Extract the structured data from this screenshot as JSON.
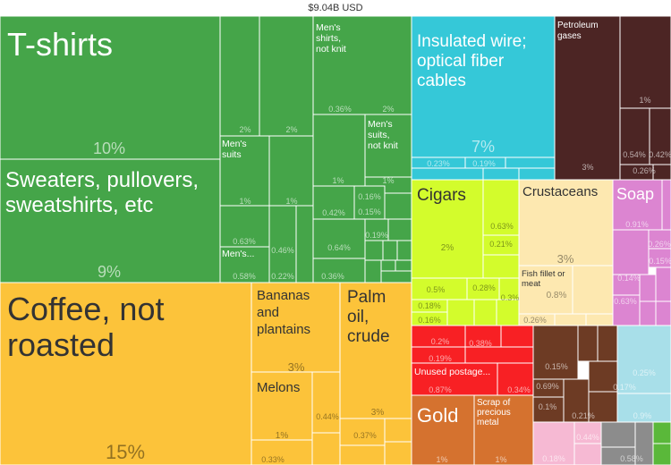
{
  "title": "$9.04B USD",
  "chart_data": {
    "type": "treemap",
    "total": "$9.04B USD",
    "colors": {
      "green": "#45a549",
      "orange": "#fcc33a",
      "cyan": "#35c8d8",
      "darkred": "#4c2524",
      "lime": "#d3fc2c",
      "cream": "#fde8b0",
      "pink": "#dc85d1",
      "red": "#f82024",
      "brown": "#d5722f",
      "chocolate": "#6d3b24",
      "lightblue": "#a8dfe9",
      "lightpink": "#f6b9d3",
      "gray": "#8c8c8c",
      "brightgreen": "#5ab83a"
    },
    "labels": [
      {
        "name": "T-shirts",
        "pct": "10%"
      },
      {
        "name": "Sweaters, pullovers, sweatshirts, etc",
        "pct": "9%"
      },
      {
        "name": "Coffee, not roasted",
        "pct": "15%"
      },
      {
        "name": "Bananas and plantains",
        "pct": "3%"
      },
      {
        "name": "Palm oil, crude",
        "pct": "3%"
      },
      {
        "name": "Melons",
        "pct": "1%"
      },
      {
        "name": "Insulated wire; optical fiber cables",
        "pct": "7%"
      },
      {
        "name": "Petroleum gases",
        "pct": "3%"
      },
      {
        "name": "Cigars",
        "pct": "2%"
      },
      {
        "name": "Crustaceans",
        "pct": "3%"
      },
      {
        "name": "Soap",
        "pct": "0.91%"
      },
      {
        "name": "Fish fillet or meat",
        "pct": "0.8%"
      },
      {
        "name": "Gold",
        "pct": "1%"
      },
      {
        "name": "Scrap of precious metal",
        "pct": "1%"
      },
      {
        "name": "Unused postage...",
        "pct": "0.87%"
      },
      {
        "name": "Men's shirts, not knit",
        "pct": "2%"
      },
      {
        "name": "Men's suits, not knit",
        "pct": "1%"
      },
      {
        "name": "Men's suits",
        "pct": "1%"
      },
      {
        "name": "Men's...",
        "pct": "0.58%"
      }
    ],
    "small_labels": [
      "2%",
      "2%",
      "2%",
      "2%",
      "1%",
      "1%",
      "0.63%",
      "0.46%",
      "0.58%",
      "0.22%",
      "0.42%",
      "0.16%",
      "0.15%",
      "0.64%",
      "0.19%",
      "0.36%",
      "0.44%",
      "0.33%",
      "0.37%",
      "0.23%",
      "0.19%",
      "1%",
      "0.54%",
      "0.26%",
      "0.42%",
      "0.63%",
      "0.21%",
      "0.5%",
      "0.28%",
      "0.3%",
      "0.18%",
      "0.16%",
      "0.26%",
      "0.15%",
      "0.14%",
      "0.63%",
      "0.2%",
      "0.38%",
      "0.19%",
      "0.34%",
      "0.15%",
      "0.69%",
      "0.17%",
      "0.1%",
      "0.21%",
      "0.25%",
      "0.9%",
      "0.44%",
      "0.18%",
      "0.58%",
      "0.19%"
    ]
  }
}
